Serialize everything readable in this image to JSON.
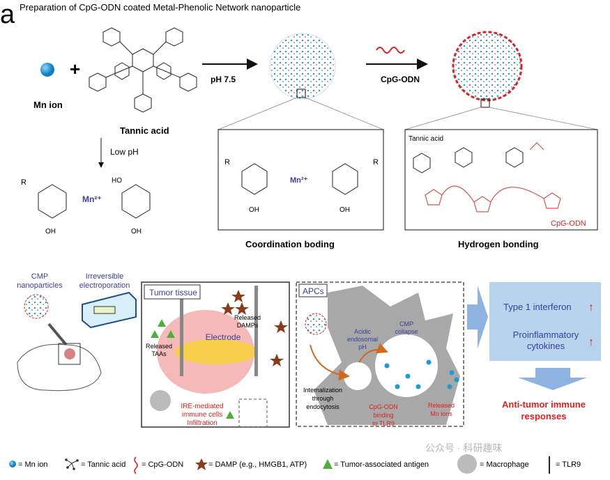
{
  "panel_label": "a",
  "title": "Preparation of CpG-ODN coated Metal-Phenolic Network nanoparticle",
  "top": {
    "mn_label": "Mn ion",
    "plus": "+",
    "tannic_label": "Tannic acid",
    "step1_label": "pH 7.5",
    "step2_label": "CpG-ODN",
    "low_ph_label": "Low pH",
    "chem_r": "R",
    "chem_mn": "Mn²⁺",
    "chem_ho": "HO",
    "chem_oh": "OH",
    "chem_o": "O",
    "coordination_caption": "Coordination boding",
    "hydrogen_caption": "Hydrogen bonding",
    "hb_tannic": "Tannic acid",
    "hb_cpg": "CpG-ODN"
  },
  "bottom": {
    "cmp_label": [
      "CMP",
      "nanoparticles"
    ],
    "ire_label": [
      "Irreversible",
      "electroporation"
    ],
    "tumor_box_title": "Tumor tissue",
    "released_damps": [
      "Released",
      "DAMPs"
    ],
    "electrode": "Electrode",
    "released_taas": [
      "Released",
      "TAAs"
    ],
    "ire_mediated": [
      "IRE-mediated",
      "immune cells",
      "Infiltration"
    ],
    "apc_box_title": "APCs",
    "acidic": [
      "Acidic",
      "endosomal",
      "pH"
    ],
    "cmp_collapse": [
      "CMP",
      "collapse"
    ],
    "internalization": [
      "Internalization",
      "through",
      "endocytosis"
    ],
    "cpg_binding": [
      "CpG-ODN",
      "binding",
      "to TLR9"
    ],
    "released_mn": [
      "Released",
      "Mn ions"
    ],
    "type1": "Type 1 interferon",
    "proinflam": [
      "Proinflammatory",
      "cytokines"
    ],
    "up_arrow": "↑",
    "outcome": [
      "Anti-tumor immune",
      "responses"
    ]
  },
  "legend": [
    {
      "icon": "mn-ion-icon",
      "label": "= Mn ion"
    },
    {
      "icon": "tannic-acid-icon",
      "label": "= Tannic acid"
    },
    {
      "icon": "cpg-odn-icon",
      "label": "= CpG-ODN"
    },
    {
      "icon": "damp-star-icon",
      "label": "= DAMP (e.g., HMGB1, ATP)"
    },
    {
      "icon": "antigen-triangle-icon",
      "label": "= Tumor-associated antigen"
    },
    {
      "icon": "macrophage-icon",
      "label": "= Macrophage"
    },
    {
      "icon": "tlr9-icon",
      "label": "= TLR9"
    }
  ],
  "watermark": "公众号 · 科研趣味",
  "colors": {
    "blue_text": "#3a3f9e",
    "red": "#e02020",
    "mn": "#1e9ad6",
    "box_blue": "#b7d3ee",
    "arrow_blue": "#8fb3e0",
    "star": "#8b3a1a",
    "triangle": "#4caf3a"
  }
}
